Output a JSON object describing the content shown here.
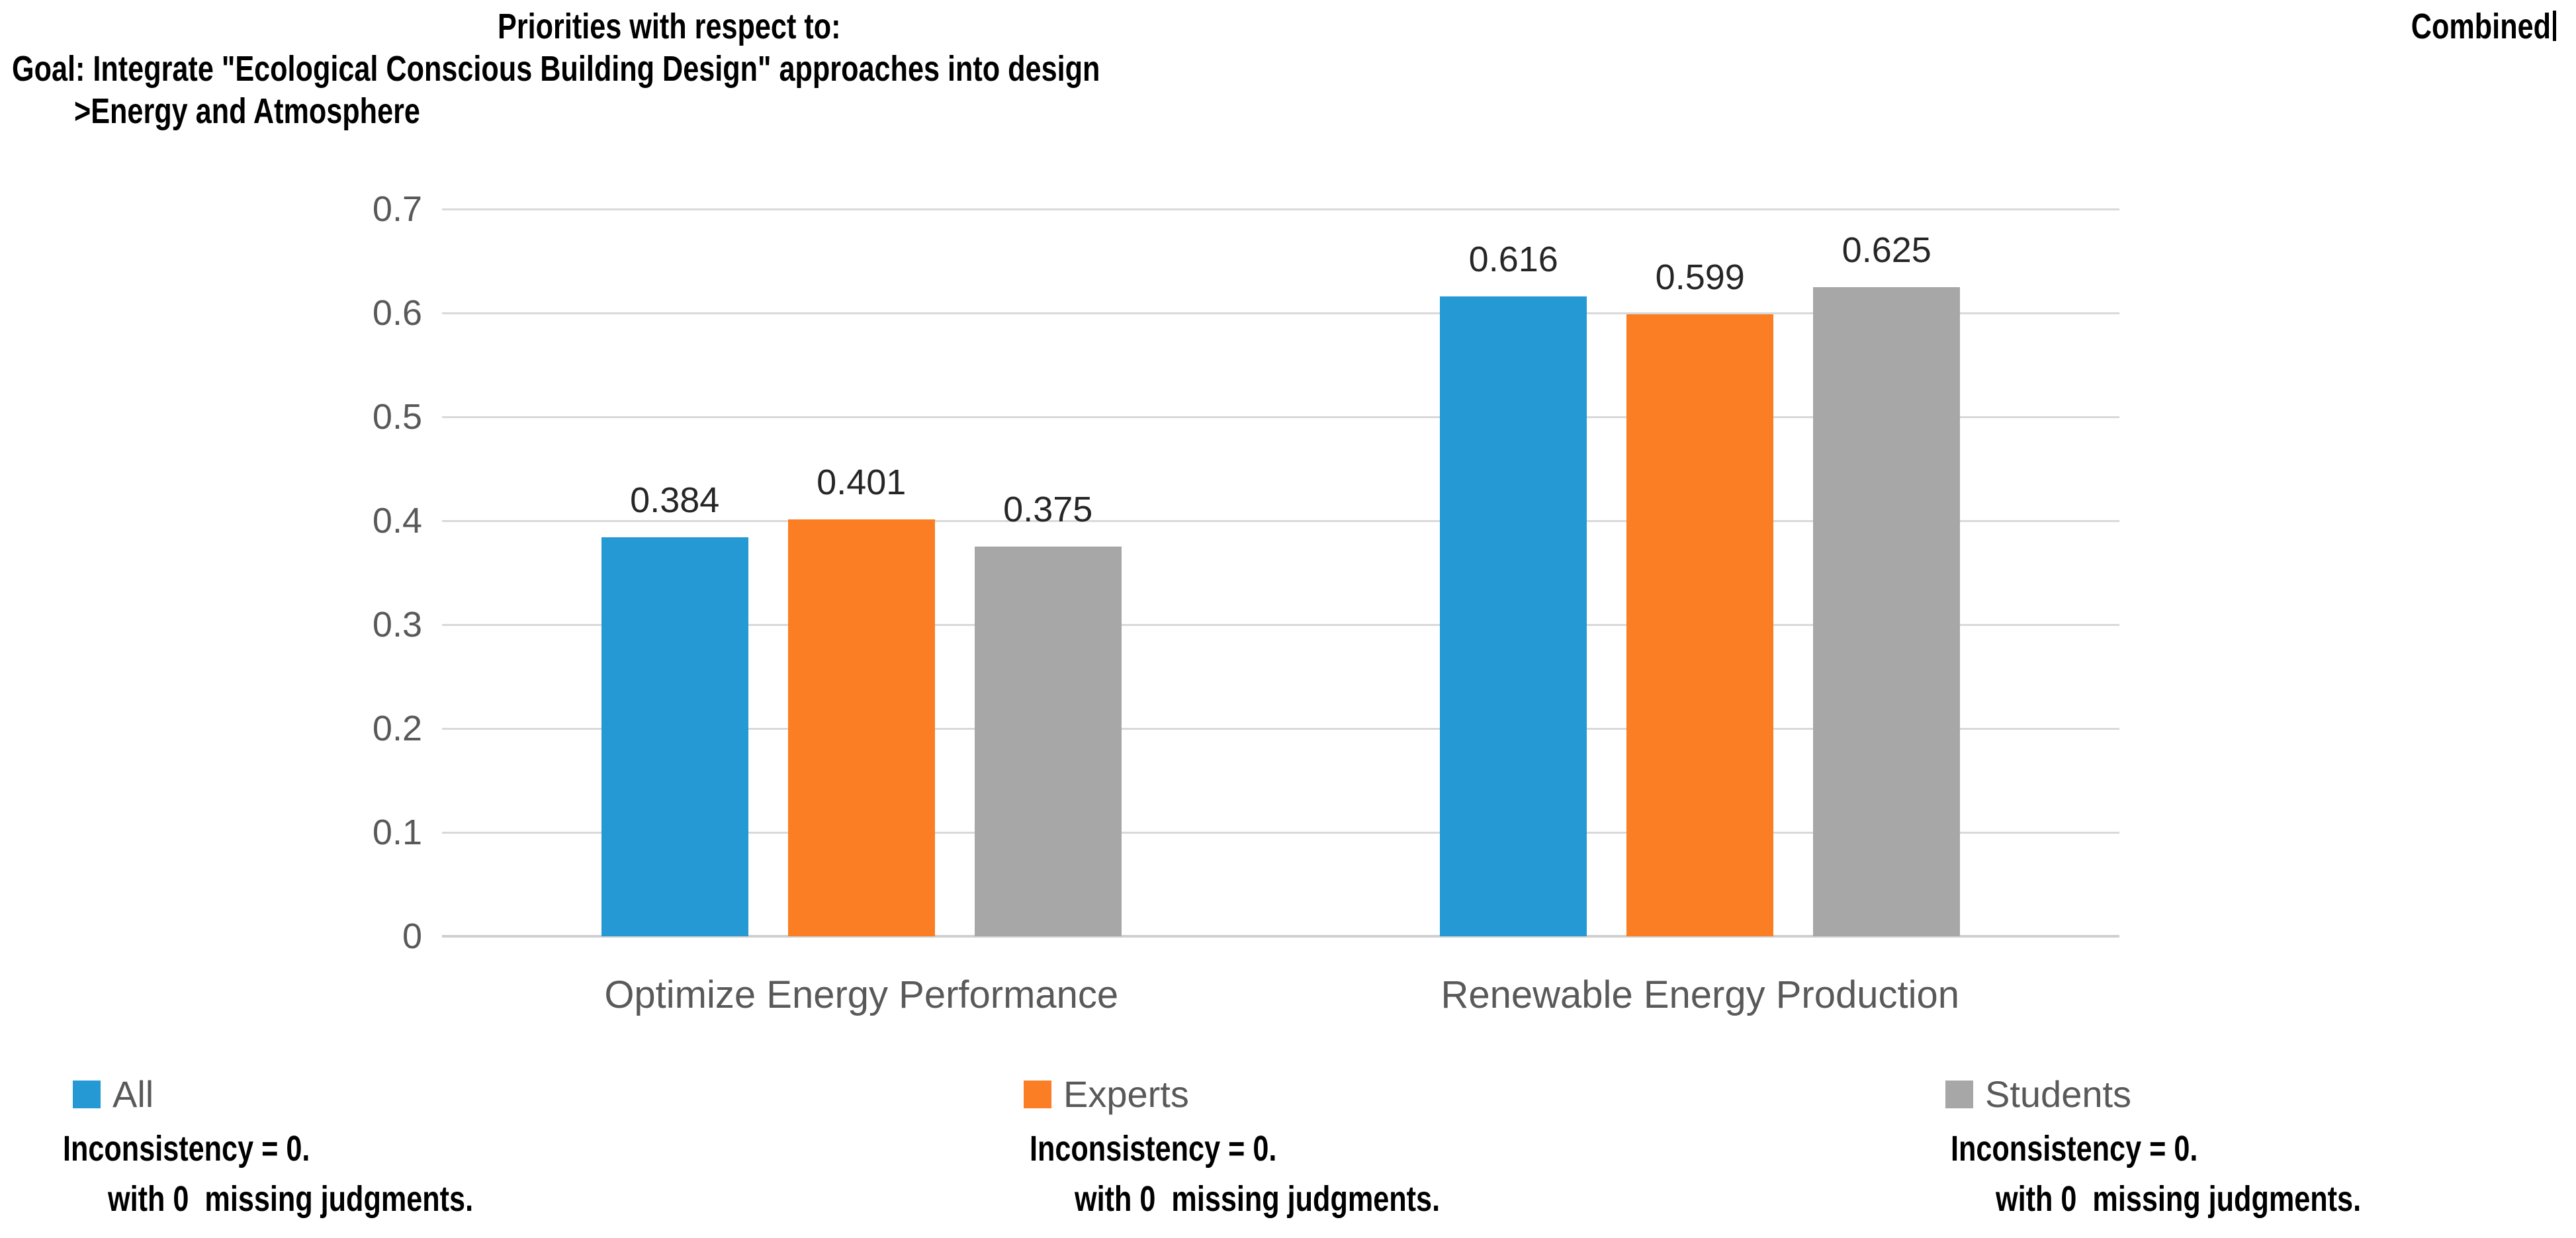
{
  "header": {
    "context_label": "Priorities with respect to:",
    "goal": "Goal: Integrate \"Ecological Conscious Building Design\" approaches into design",
    "node": ">Energy and Atmosphere",
    "mode_label": "Combined"
  },
  "chart_data": {
    "type": "bar",
    "title": "Priorities with respect to: Goal: Integrate \"Ecological Conscious Building Design\" approaches into design >Energy and Atmosphere",
    "categories": [
      "Optimize Energy Performance",
      "Renewable Energy Production"
    ],
    "series": [
      {
        "name": "All",
        "color": "#2499D4",
        "values": [
          0.384,
          0.616
        ]
      },
      {
        "name": "Experts",
        "color": "#FB7D24",
        "values": [
          0.401,
          0.599
        ]
      },
      {
        "name": "Students",
        "color": "#A7A7A7",
        "values": [
          0.375,
          0.625
        ]
      }
    ],
    "ylim": [
      0,
      0.7
    ],
    "yticks": [
      "0",
      "0.1",
      "0.2",
      "0.3",
      "0.4",
      "0.5",
      "0.6",
      "0.7"
    ],
    "grid": true,
    "legend_position": "bottom",
    "value_label_decimals": 3
  },
  "footnotes": [
    {
      "line1": "Inconsistency = 0.",
      "line2": "with 0  missing judgments."
    },
    {
      "line1": "Inconsistency = 0.",
      "line2": "with 0  missing judgments."
    },
    {
      "line1": "Inconsistency = 0.",
      "line2": "with 0  missing judgments."
    }
  ],
  "colors": {
    "grid": "#D9D9D9",
    "axis_text": "#595959",
    "value_label": "#262626",
    "title_text": "#000000"
  }
}
